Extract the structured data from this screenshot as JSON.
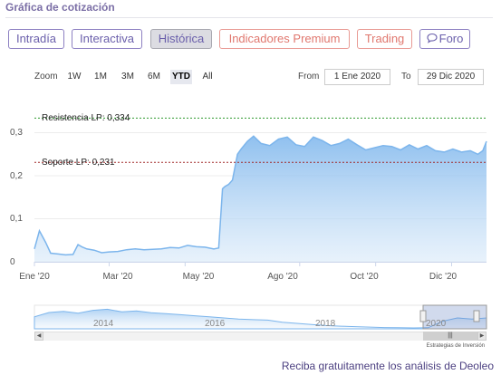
{
  "header": {
    "title": "Gráfica de cotización"
  },
  "tabs": [
    {
      "label": "Intradía"
    },
    {
      "label": "Interactiva"
    },
    {
      "label": "Histórica"
    },
    {
      "label": "Indicadores Premium"
    },
    {
      "label": "Trading"
    },
    {
      "label": "Foro",
      "icon": "chat-bubble-icon"
    }
  ],
  "range_selector": {
    "zoom_label": "Zoom",
    "buttons": [
      "1W",
      "1M",
      "3M",
      "6M",
      "YTD",
      "All"
    ],
    "selected": "YTD",
    "from_label": "From",
    "from_value": "1 Ene 2020",
    "to_label": "To",
    "to_value": "29 Dic 2020"
  },
  "chart_data": {
    "type": "area",
    "y_ticks": [
      "0",
      "0,1",
      "0,2",
      "0,3"
    ],
    "ylim": [
      0,
      0.36
    ],
    "x_ticks": [
      "Ene '20",
      "Mar '20",
      "May '20",
      "Ago '20",
      "Oct '20",
      "Dic '20"
    ],
    "reference_lines": [
      {
        "label": "Resistencia LP: 0,334",
        "value": 0.334,
        "color": "#2e9a2e"
      },
      {
        "label": "Soporte LP: 0,231",
        "value": 0.231,
        "color": "#a02828"
      }
    ],
    "series": [
      {
        "color": "#7cb5ec",
        "x": [
          "2020-01-01",
          "2020-01-05",
          "2020-01-10",
          "2020-01-14",
          "2020-01-20",
          "2020-01-26",
          "2020-02-01",
          "2020-02-05",
          "2020-02-08",
          "2020-02-12",
          "2020-02-18",
          "2020-02-24",
          "2020-03-01",
          "2020-03-08",
          "2020-03-15",
          "2020-03-22",
          "2020-03-29",
          "2020-04-05",
          "2020-04-12",
          "2020-04-19",
          "2020-04-26",
          "2020-05-03",
          "2020-05-10",
          "2020-05-17",
          "2020-05-24",
          "2020-05-28",
          "2020-05-31",
          "2020-06-02",
          "2020-06-05",
          "2020-06-08",
          "2020-06-12",
          "2020-06-15",
          "2020-06-20",
          "2020-06-25",
          "2020-07-01",
          "2020-07-08",
          "2020-07-15",
          "2020-07-22",
          "2020-07-29",
          "2020-08-05",
          "2020-08-12",
          "2020-08-19",
          "2020-08-26",
          "2020-09-02",
          "2020-09-09",
          "2020-09-16",
          "2020-09-23",
          "2020-09-30",
          "2020-10-07",
          "2020-10-14",
          "2020-10-21",
          "2020-10-28",
          "2020-11-04",
          "2020-11-11",
          "2020-11-18",
          "2020-11-25",
          "2020-12-02",
          "2020-12-09",
          "2020-12-16",
          "2020-12-22",
          "2020-12-26",
          "2020-12-29"
        ],
        "y": [
          0.03,
          0.072,
          0.045,
          0.02,
          0.018,
          0.016,
          0.017,
          0.04,
          0.035,
          0.03,
          0.027,
          0.021,
          0.023,
          0.024,
          0.028,
          0.03,
          0.028,
          0.029,
          0.03,
          0.033,
          0.032,
          0.038,
          0.035,
          0.034,
          0.03,
          0.032,
          0.17,
          0.175,
          0.18,
          0.19,
          0.25,
          0.262,
          0.28,
          0.292,
          0.275,
          0.27,
          0.285,
          0.29,
          0.272,
          0.268,
          0.29,
          0.282,
          0.27,
          0.275,
          0.285,
          0.272,
          0.26,
          0.265,
          0.27,
          0.268,
          0.26,
          0.272,
          0.262,
          0.27,
          0.258,
          0.255,
          0.262,
          0.255,
          0.258,
          0.25,
          0.258,
          0.28
        ]
      }
    ]
  },
  "navigator": {
    "years": [
      "2014",
      "2016",
      "2018",
      "2020"
    ],
    "credit": "Estrategias de Inversión"
  },
  "footer": {
    "cta": "Reciba gratuitamente los análisis de Deoleo"
  }
}
